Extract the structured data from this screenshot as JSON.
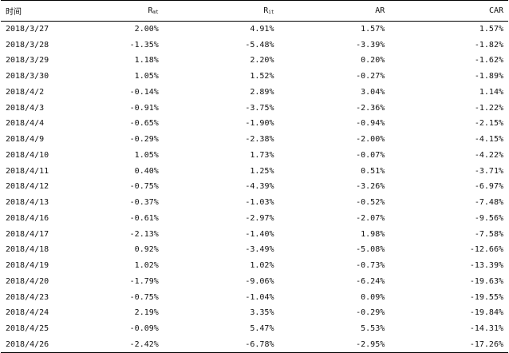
{
  "table": {
    "headers": {
      "date": "时间",
      "rmt_main": "R",
      "rmt_sub": "mt",
      "rit_main": "R",
      "rit_sub": "it",
      "ar": "AR",
      "car": "CAR"
    },
    "rows": [
      {
        "date": "2018/3/27",
        "rmt": "2.00%",
        "rit": "4.91%",
        "ar": "1.57%",
        "car": "1.57%"
      },
      {
        "date": "2018/3/28",
        "rmt": "-1.35%",
        "rit": "-5.48%",
        "ar": "-3.39%",
        "car": "-1.82%"
      },
      {
        "date": "2018/3/29",
        "rmt": "1.18%",
        "rit": "2.20%",
        "ar": "0.20%",
        "car": "-1.62%"
      },
      {
        "date": "2018/3/30",
        "rmt": "1.05%",
        "rit": "1.52%",
        "ar": "-0.27%",
        "car": "-1.89%"
      },
      {
        "date": "2018/4/2",
        "rmt": "-0.14%",
        "rit": "2.89%",
        "ar": "3.04%",
        "car": "1.14%"
      },
      {
        "date": "2018/4/3",
        "rmt": "-0.91%",
        "rit": "-3.75%",
        "ar": "-2.36%",
        "car": "-1.22%"
      },
      {
        "date": "2018/4/4",
        "rmt": "-0.65%",
        "rit": "-1.90%",
        "ar": "-0.94%",
        "car": "-2.15%"
      },
      {
        "date": "2018/4/9",
        "rmt": "-0.29%",
        "rit": "-2.38%",
        "ar": "-2.00%",
        "car": "-4.15%"
      },
      {
        "date": "2018/4/10",
        "rmt": "1.05%",
        "rit": "1.73%",
        "ar": "-0.07%",
        "car": "-4.22%"
      },
      {
        "date": "2018/4/11",
        "rmt": "0.40%",
        "rit": "1.25%",
        "ar": "0.51%",
        "car": "-3.71%"
      },
      {
        "date": "2018/4/12",
        "rmt": "-0.75%",
        "rit": "-4.39%",
        "ar": "-3.26%",
        "car": "-6.97%"
      },
      {
        "date": "2018/4/13",
        "rmt": "-0.37%",
        "rit": "-1.03%",
        "ar": "-0.52%",
        "car": "-7.48%"
      },
      {
        "date": "2018/4/16",
        "rmt": "-0.61%",
        "rit": "-2.97%",
        "ar": "-2.07%",
        "car": "-9.56%"
      },
      {
        "date": "2018/4/17",
        "rmt": "-2.13%",
        "rit": "-1.40%",
        "ar": "1.98%",
        "car": "-7.58%"
      },
      {
        "date": "2018/4/18",
        "rmt": "0.92%",
        "rit": "-3.49%",
        "ar": "-5.08%",
        "car": "-12.66%"
      },
      {
        "date": "2018/4/19",
        "rmt": "1.02%",
        "rit": "1.02%",
        "ar": "-0.73%",
        "car": "-13.39%"
      },
      {
        "date": "2018/4/20",
        "rmt": "-1.79%",
        "rit": "-9.06%",
        "ar": "-6.24%",
        "car": "-19.63%"
      },
      {
        "date": "2018/4/23",
        "rmt": "-0.75%",
        "rit": "-1.04%",
        "ar": "0.09%",
        "car": "-19.55%"
      },
      {
        "date": "2018/4/24",
        "rmt": "2.19%",
        "rit": "3.35%",
        "ar": "-0.29%",
        "car": "-19.84%"
      },
      {
        "date": "2018/4/25",
        "rmt": "-0.09%",
        "rit": "5.47%",
        "ar": "5.53%",
        "car": "-14.31%"
      },
      {
        "date": "2018/4/26",
        "rmt": "-2.42%",
        "rit": "-6.78%",
        "ar": "-2.95%",
        "car": "-17.26%"
      }
    ]
  }
}
